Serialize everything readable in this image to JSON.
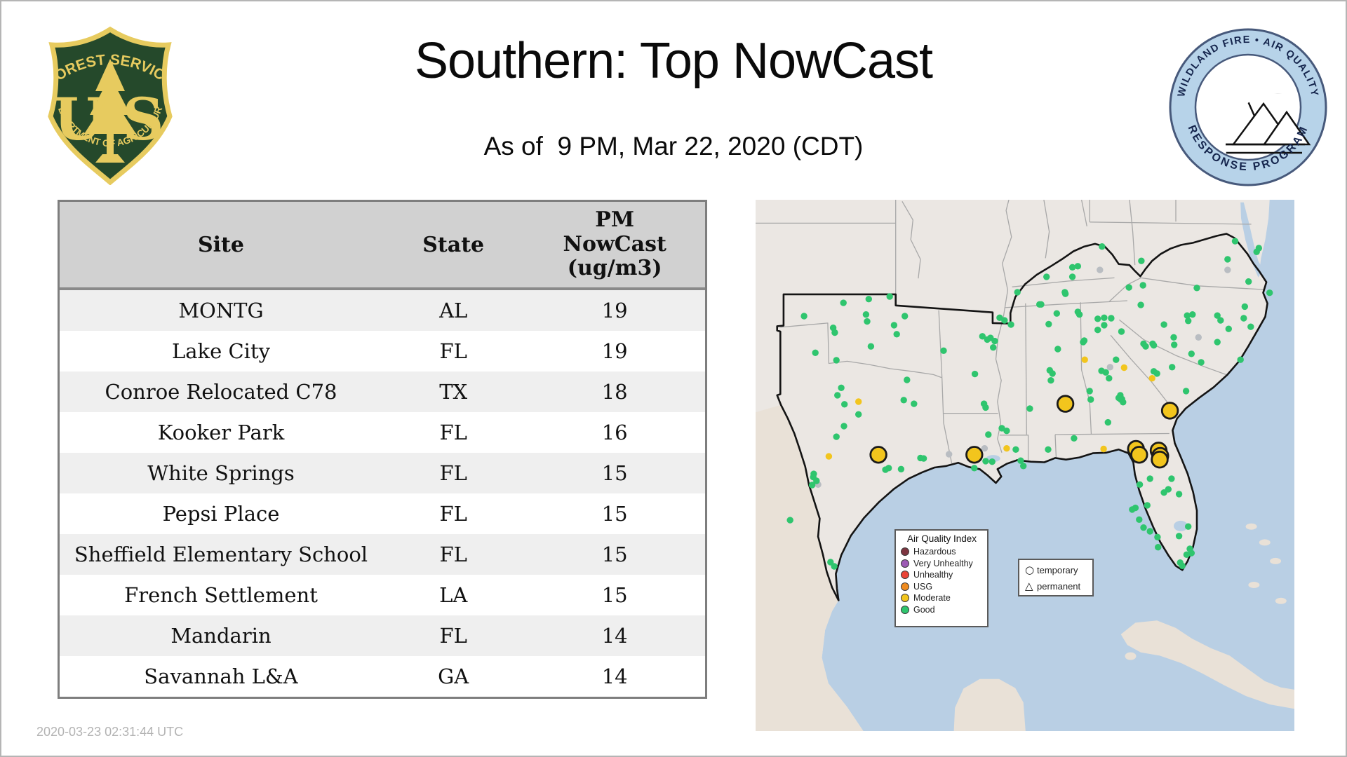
{
  "header": {
    "title": "Southern: Top NowCast",
    "subtitle": "As of  9 PM, Mar 22, 2020 (CDT)"
  },
  "timestamp": "2020-03-23 02:31:44 UTC",
  "logos": {
    "forest_service": {
      "arc_top": "FOREST SERVICE",
      "letter_left": "U",
      "letter_right": "S",
      "arc_bottom": "DEPARTMENT OF AGRICULTURE",
      "green": "#25492b",
      "gold": "#e7cb5f"
    },
    "airfire": {
      "arc_top": "WILDLAND FIRE • AIR QUALITY",
      "arc_bottom": "RESPONSE PROGRAM",
      "ring_color": "#b7d3e9",
      "border_color": "#47597b",
      "text_color": "#15254d",
      "smoke_color": "#c6c6c6",
      "flame_color": "#e53125"
    }
  },
  "table": {
    "columns": [
      "Site",
      "State",
      "PM\nNowCast\n(ug/m3)"
    ],
    "rows": [
      {
        "site": "MONTG",
        "state": "AL",
        "value": "19"
      },
      {
        "site": "Lake City",
        "state": "FL",
        "value": "19"
      },
      {
        "site": "Conroe Relocated C78",
        "state": "TX",
        "value": "18"
      },
      {
        "site": "Kooker Park",
        "state": "FL",
        "value": "16"
      },
      {
        "site": "White Springs",
        "state": "FL",
        "value": "15"
      },
      {
        "site": "Pepsi Place",
        "state": "FL",
        "value": "15"
      },
      {
        "site": "Sheffield Elementary School",
        "state": "FL",
        "value": "15"
      },
      {
        "site": "French Settlement",
        "state": "LA",
        "value": "15"
      },
      {
        "site": "Mandarin",
        "state": "FL",
        "value": "14"
      },
      {
        "site": "Savannah L&A",
        "state": "GA",
        "value": "14"
      }
    ]
  },
  "map": {
    "colors": {
      "water": "#b9cfe4",
      "land": "#ebe7e3",
      "foreign_land": "#e9e1d7",
      "region_border": "#141414",
      "state_line": "#a8a8a8",
      "good": "#2fc56e",
      "moderate": "#f2c51d",
      "no_data": "#b9bdc2",
      "marker_stroke": "#1a1a1a"
    },
    "legend": {
      "title": "Air Quality Index",
      "items": [
        {
          "label": "Hazardous",
          "color": "#7d3540"
        },
        {
          "label": "Very Unhealthy",
          "color": "#9d5bb5"
        },
        {
          "label": "Unhealthy",
          "color": "#ea4437"
        },
        {
          "label": "USG",
          "color": "#ef8b1f"
        },
        {
          "label": "Moderate",
          "color": "#f2c51d"
        },
        {
          "label": "Good",
          "color": "#2fc56e"
        }
      ]
    },
    "marker_legend": {
      "temporary": "temporary",
      "permanent": "permanent"
    },
    "markers_moderate_large": [
      [
        57.5,
        38.4
      ],
      [
        76.9,
        39.7
      ],
      [
        22.8,
        48.0
      ],
      [
        40.6,
        48.0
      ],
      [
        70.6,
        46.9
      ],
      [
        71.2,
        48.0
      ],
      [
        74.8,
        47.2
      ],
      [
        75.1,
        48.2
      ],
      [
        75.0,
        48.9
      ]
    ],
    "dots_moderate_small": [
      [
        61.1,
        30.1
      ],
      [
        68.4,
        31.6
      ],
      [
        73.6,
        33.6
      ],
      [
        19.1,
        38.0
      ],
      [
        13.6,
        48.3
      ],
      [
        46.6,
        46.8
      ],
      [
        64.6,
        46.9
      ]
    ],
    "dots_no_data": [
      [
        63.9,
        13.2
      ],
      [
        87.6,
        13.2
      ],
      [
        82.2,
        25.9
      ],
      [
        65.8,
        31.5
      ],
      [
        35.9,
        47.9
      ],
      [
        42.5,
        46.8
      ],
      [
        11.6,
        53.6
      ]
    ],
    "dots_good": [
      [
        16.3,
        19.4
      ],
      [
        21.0,
        18.7
      ],
      [
        24.9,
        18.2
      ],
      [
        9.0,
        21.9
      ],
      [
        20.5,
        21.6
      ],
      [
        20.7,
        22.9
      ],
      [
        27.7,
        21.9
      ],
      [
        25.7,
        23.6
      ],
      [
        26.2,
        25.3
      ],
      [
        14.4,
        24.1
      ],
      [
        14.7,
        25.0
      ],
      [
        11.1,
        28.8
      ],
      [
        21.4,
        27.6
      ],
      [
        15.0,
        30.2
      ],
      [
        34.9,
        28.4
      ],
      [
        43.0,
        26.3
      ],
      [
        44.4,
        26.6
      ],
      [
        44.1,
        27.8
      ],
      [
        46.2,
        22.7
      ],
      [
        40.7,
        32.8
      ],
      [
        28.1,
        33.9
      ],
      [
        29.4,
        38.4
      ],
      [
        27.5,
        37.7
      ],
      [
        15.9,
        35.4
      ],
      [
        15.2,
        36.8
      ],
      [
        16.5,
        38.5
      ],
      [
        19.1,
        40.4
      ],
      [
        16.4,
        42.6
      ],
      [
        15.0,
        44.6
      ],
      [
        42.7,
        39.1
      ],
      [
        50.9,
        39.3
      ],
      [
        43.2,
        44.2
      ],
      [
        46.6,
        43.5
      ],
      [
        30.6,
        48.6
      ],
      [
        31.2,
        48.7
      ],
      [
        24.7,
        50.5
      ],
      [
        27.0,
        50.7
      ],
      [
        49.2,
        49.1
      ],
      [
        49.7,
        50.1
      ],
      [
        40.6,
        50.5
      ],
      [
        24.1,
        50.8
      ],
      [
        10.8,
        51.6
      ],
      [
        10.7,
        52.2
      ],
      [
        11.3,
        52.9
      ],
      [
        10.5,
        53.7
      ],
      [
        6.4,
        60.3
      ],
      [
        13.9,
        68.2
      ],
      [
        14.6,
        69.0
      ],
      [
        54.0,
        14.5
      ],
      [
        58.8,
        14.5
      ],
      [
        48.6,
        17.4
      ],
      [
        45.3,
        22.2
      ],
      [
        47.4,
        23.5
      ],
      [
        53.0,
        19.7
      ],
      [
        57.4,
        17.4
      ],
      [
        59.8,
        21.1
      ],
      [
        54.4,
        23.4
      ],
      [
        63.5,
        22.4
      ],
      [
        64.7,
        22.2
      ],
      [
        66.0,
        22.3
      ],
      [
        63.5,
        24.5
      ],
      [
        64.7,
        23.6
      ],
      [
        67.9,
        24.8
      ],
      [
        61.0,
        26.5
      ],
      [
        56.1,
        28.1
      ],
      [
        42.1,
        25.7
      ],
      [
        43.6,
        26.0
      ],
      [
        54.6,
        32.1
      ],
      [
        55.1,
        32.7
      ],
      [
        54.8,
        34.0
      ],
      [
        64.2,
        32.2
      ],
      [
        65.0,
        32.5
      ],
      [
        65.6,
        33.6
      ],
      [
        62.2,
        37.6
      ],
      [
        67.7,
        36.8
      ],
      [
        68.0,
        37.5
      ],
      [
        65.4,
        41.9
      ],
      [
        42.4,
        38.4
      ],
      [
        45.7,
        43.0
      ],
      [
        48.3,
        47.0
      ],
      [
        54.3,
        47.0
      ],
      [
        59.1,
        44.9
      ],
      [
        42.7,
        49.2
      ],
      [
        43.9,
        49.3
      ],
      [
        62.0,
        36.0
      ],
      [
        60.8,
        26.8
      ],
      [
        66.9,
        30.1
      ],
      [
        64.3,
        8.8
      ],
      [
        58.8,
        12.7
      ],
      [
        59.8,
        12.5
      ],
      [
        71.6,
        11.5
      ],
      [
        89.0,
        7.8
      ],
      [
        93.0,
        9.8
      ],
      [
        93.4,
        9.1
      ],
      [
        87.6,
        11.2
      ],
      [
        69.3,
        16.5
      ],
      [
        71.9,
        16.1
      ],
      [
        57.5,
        17.7
      ],
      [
        81.9,
        16.6
      ],
      [
        91.5,
        15.4
      ],
      [
        95.4,
        17.5
      ],
      [
        52.7,
        19.7
      ],
      [
        55.9,
        21.4
      ],
      [
        60.1,
        21.6
      ],
      [
        71.5,
        19.8
      ],
      [
        75.8,
        23.5
      ],
      [
        80.1,
        21.8
      ],
      [
        81.1,
        21.6
      ],
      [
        80.3,
        22.8
      ],
      [
        85.7,
        21.8
      ],
      [
        86.3,
        22.7
      ],
      [
        87.8,
        24.3
      ],
      [
        90.8,
        20.1
      ],
      [
        90.6,
        22.3
      ],
      [
        91.9,
        23.9
      ],
      [
        77.6,
        25.9
      ],
      [
        73.7,
        27.1
      ],
      [
        72.0,
        27.1
      ],
      [
        77.7,
        27.3
      ],
      [
        72.4,
        27.6
      ],
      [
        73.9,
        27.4
      ],
      [
        80.9,
        29.0
      ],
      [
        82.7,
        30.6
      ],
      [
        85.7,
        26.8
      ],
      [
        90.0,
        30.1
      ],
      [
        77.3,
        31.5
      ],
      [
        73.9,
        32.3
      ],
      [
        74.5,
        32.7
      ],
      [
        79.9,
        36.0
      ],
      [
        67.8,
        37.6
      ],
      [
        68.2,
        38.1
      ],
      [
        67.4,
        37.3
      ],
      [
        73.2,
        52.5
      ],
      [
        71.3,
        53.6
      ],
      [
        77.2,
        52.5
      ],
      [
        75.8,
        55.1
      ],
      [
        76.6,
        54.5
      ],
      [
        78.6,
        55.4
      ],
      [
        70.5,
        58.0
      ],
      [
        69.9,
        58.3
      ],
      [
        72.7,
        57.5
      ],
      [
        71.2,
        60.2
      ],
      [
        72.0,
        61.7
      ],
      [
        73.2,
        62.4
      ],
      [
        74.6,
        63.5
      ],
      [
        78.6,
        63.3
      ],
      [
        80.3,
        61.5
      ],
      [
        74.7,
        65.4
      ],
      [
        80.6,
        65.7
      ],
      [
        80.9,
        66.5
      ],
      [
        80.0,
        66.8
      ],
      [
        78.8,
        68.3
      ],
      [
        79.2,
        68.9
      ]
    ]
  }
}
